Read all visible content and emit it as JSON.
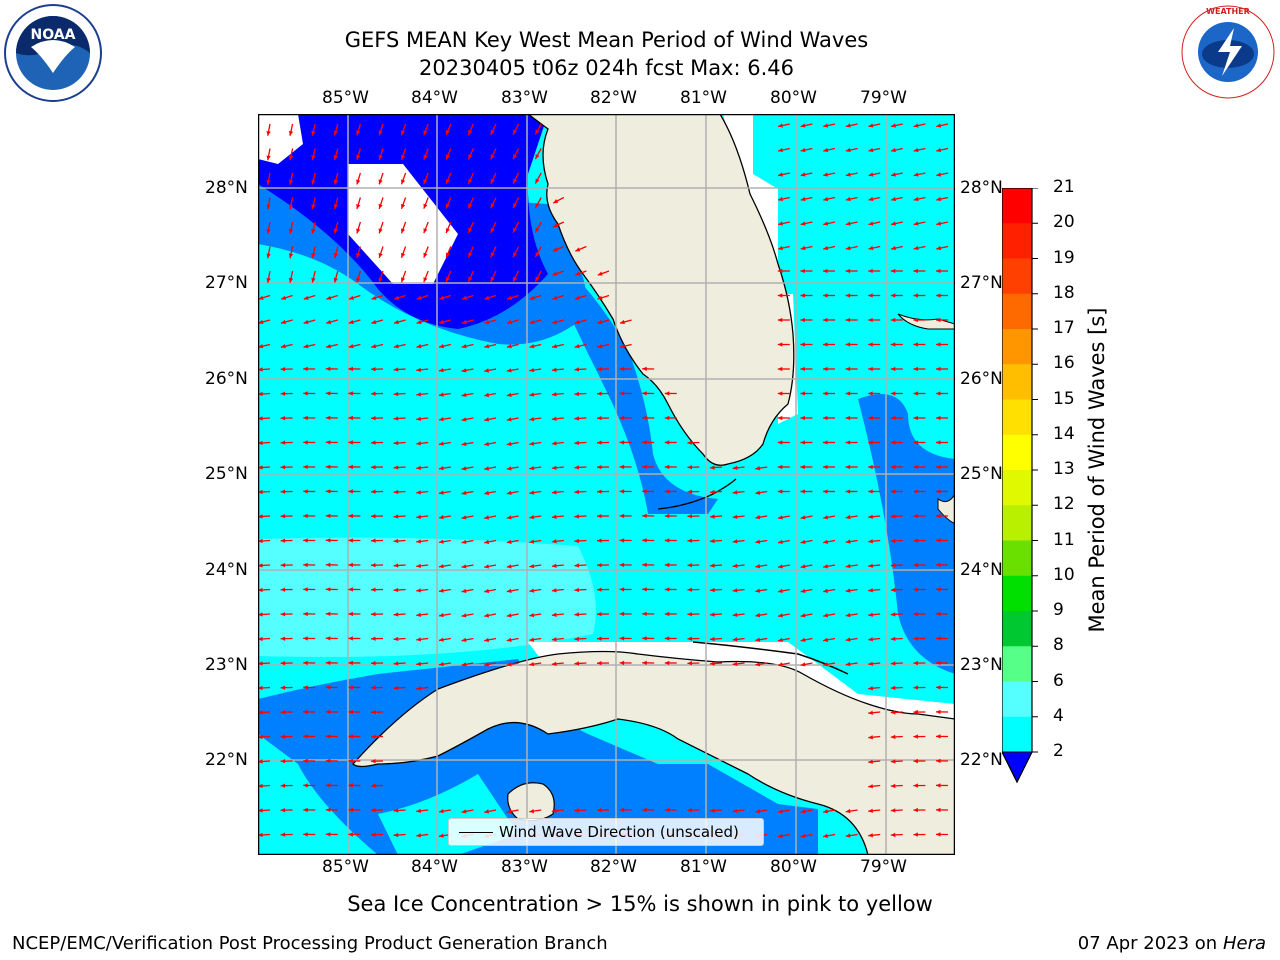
{
  "title": {
    "line1": "GEFS MEAN Key West Mean Period of Wind Waves",
    "line2": "20230405 t06z 024h fcst   Max: 6.46"
  },
  "logos": {
    "left": {
      "icon": "noaa-logo-icon",
      "text": "NOAA"
    },
    "right": {
      "icon": "nws-logo-icon",
      "text": "NATIONAL WEATHER SERVICE"
    }
  },
  "map": {
    "lon_labels": [
      "85°W",
      "84°W",
      "83°W",
      "82°W",
      "81°W",
      "80°W",
      "79°W"
    ],
    "lat_labels": [
      "28°N",
      "27°N",
      "26°N",
      "25°N",
      "24°N",
      "23°N",
      "22°N"
    ],
    "colors": {
      "ocean_cyan": "#00ffff",
      "ocean_light": "#55ffff",
      "ocean_blue": "#0080ff",
      "deep_blue": "#0000ff",
      "land": "#efedde",
      "arrow": "#ff0000",
      "grid": "#b0b0b0"
    }
  },
  "legend": {
    "label": "Wind Wave Direction (unscaled)"
  },
  "colorbar": {
    "label": "Mean Period of Wind Waves [s]",
    "ticks": [
      "21",
      "20",
      "19",
      "18",
      "17",
      "16",
      "15",
      "14",
      "13",
      "12",
      "11",
      "10",
      "9",
      "8",
      "6",
      "4",
      "2"
    ],
    "colors": [
      "#ff0000",
      "#ff2000",
      "#ff4000",
      "#ff6a00",
      "#ff9600",
      "#ffbe00",
      "#ffe000",
      "#ffff00",
      "#e0f800",
      "#b8f000",
      "#6ae000",
      "#00e000",
      "#00c830",
      "#55ff88",
      "#99ffff",
      "#55ffff",
      "#00ffff",
      "#0080ff"
    ],
    "extend_color": "#0000ff"
  },
  "footer": {
    "subtitle": "Sea Ice Concentration > 15% is shown in pink to yellow",
    "left": "NCEP/EMC/Verification Post Processing Product Generation Branch",
    "right_date": "07 Apr 2023 on ",
    "right_machine": "Hera"
  }
}
